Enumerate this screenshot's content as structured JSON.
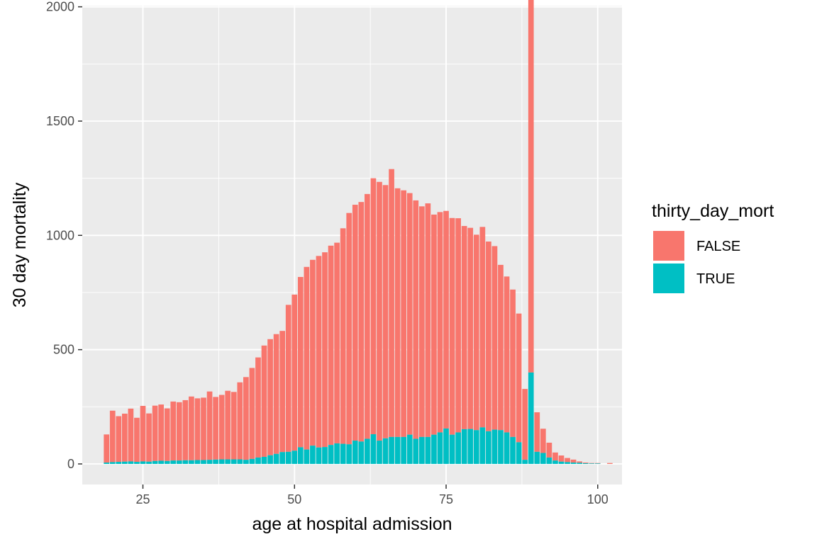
{
  "chart_data": {
    "type": "bar",
    "stacked": true,
    "title": "",
    "xlabel": "age at hospital admission",
    "ylabel": "30 day mortality",
    "xlim": [
      15,
      104
    ],
    "ylim": [
      -90,
      2005
    ],
    "x_ticks": [
      "25",
      "50",
      "75",
      "100"
    ],
    "y_ticks": [
      "0",
      "500",
      "1000",
      "1500",
      "2000"
    ],
    "grid": true,
    "legend": {
      "title": "thirty_day_mort",
      "position": "right",
      "entries": [
        "FALSE",
        "TRUE"
      ]
    },
    "x": [
      19,
      20,
      21,
      22,
      23,
      24,
      25,
      26,
      27,
      28,
      29,
      30,
      31,
      32,
      33,
      34,
      35,
      36,
      37,
      38,
      39,
      40,
      41,
      42,
      43,
      44,
      45,
      46,
      47,
      48,
      49,
      50,
      51,
      52,
      53,
      54,
      55,
      56,
      57,
      58,
      59,
      60,
      61,
      62,
      63,
      64,
      65,
      66,
      67,
      68,
      69,
      70,
      71,
      72,
      73,
      74,
      75,
      76,
      77,
      78,
      79,
      80,
      81,
      82,
      83,
      84,
      85,
      86,
      87,
      88,
      89,
      90,
      91,
      92,
      93,
      94,
      95,
      96,
      97,
      98,
      99,
      100,
      101,
      102
    ],
    "series": [
      {
        "name": "FALSE",
        "color": "#F8766D",
        "values": [
          123,
          225,
          200,
          210,
          231,
          193,
          243,
          211,
          242,
          246,
          230,
          258,
          255,
          263,
          279,
          270,
          273,
          299,
          274,
          282,
          300,
          295,
          337,
          362,
          398,
          438,
          487,
          508,
          524,
          530,
          643,
          683,
          745,
          799,
          813,
          838,
          852,
          872,
          878,
          943,
          1012,
          1032,
          1048,
          1071,
          1120,
          1132,
          1108,
          1172,
          1088,
          1079,
          1057,
          1043,
          1009,
          1022,
          963,
          964,
          952,
          948,
          937,
          889,
          880,
          855,
          877,
          830,
          803,
          723,
          682,
          645,
          563,
          310,
          1760,
          173,
          106,
          65,
          35,
          27,
          18,
          13,
          6,
          3,
          2,
          2,
          0,
          4
        ]
      },
      {
        "name": "TRUE",
        "color": "#00BFC4",
        "values": [
          6,
          8,
          9,
          10,
          11,
          9,
          11,
          10,
          13,
          14,
          13,
          15,
          15,
          16,
          16,
          17,
          17,
          18,
          19,
          20,
          20,
          20,
          20,
          18,
          22,
          28,
          31,
          38,
          44,
          52,
          53,
          58,
          73,
          63,
          80,
          72,
          74,
          83,
          90,
          88,
          86,
          102,
          98,
          110,
          130,
          102,
          112,
          118,
          118,
          118,
          128,
          110,
          118,
          118,
          128,
          138,
          155,
          128,
          138,
          152,
          153,
          148,
          160,
          143,
          150,
          148,
          138,
          118,
          95,
          18,
          400,
          53,
          48,
          28,
          15,
          10,
          8,
          6,
          5,
          3,
          2,
          2,
          0,
          0
        ]
      }
    ]
  }
}
